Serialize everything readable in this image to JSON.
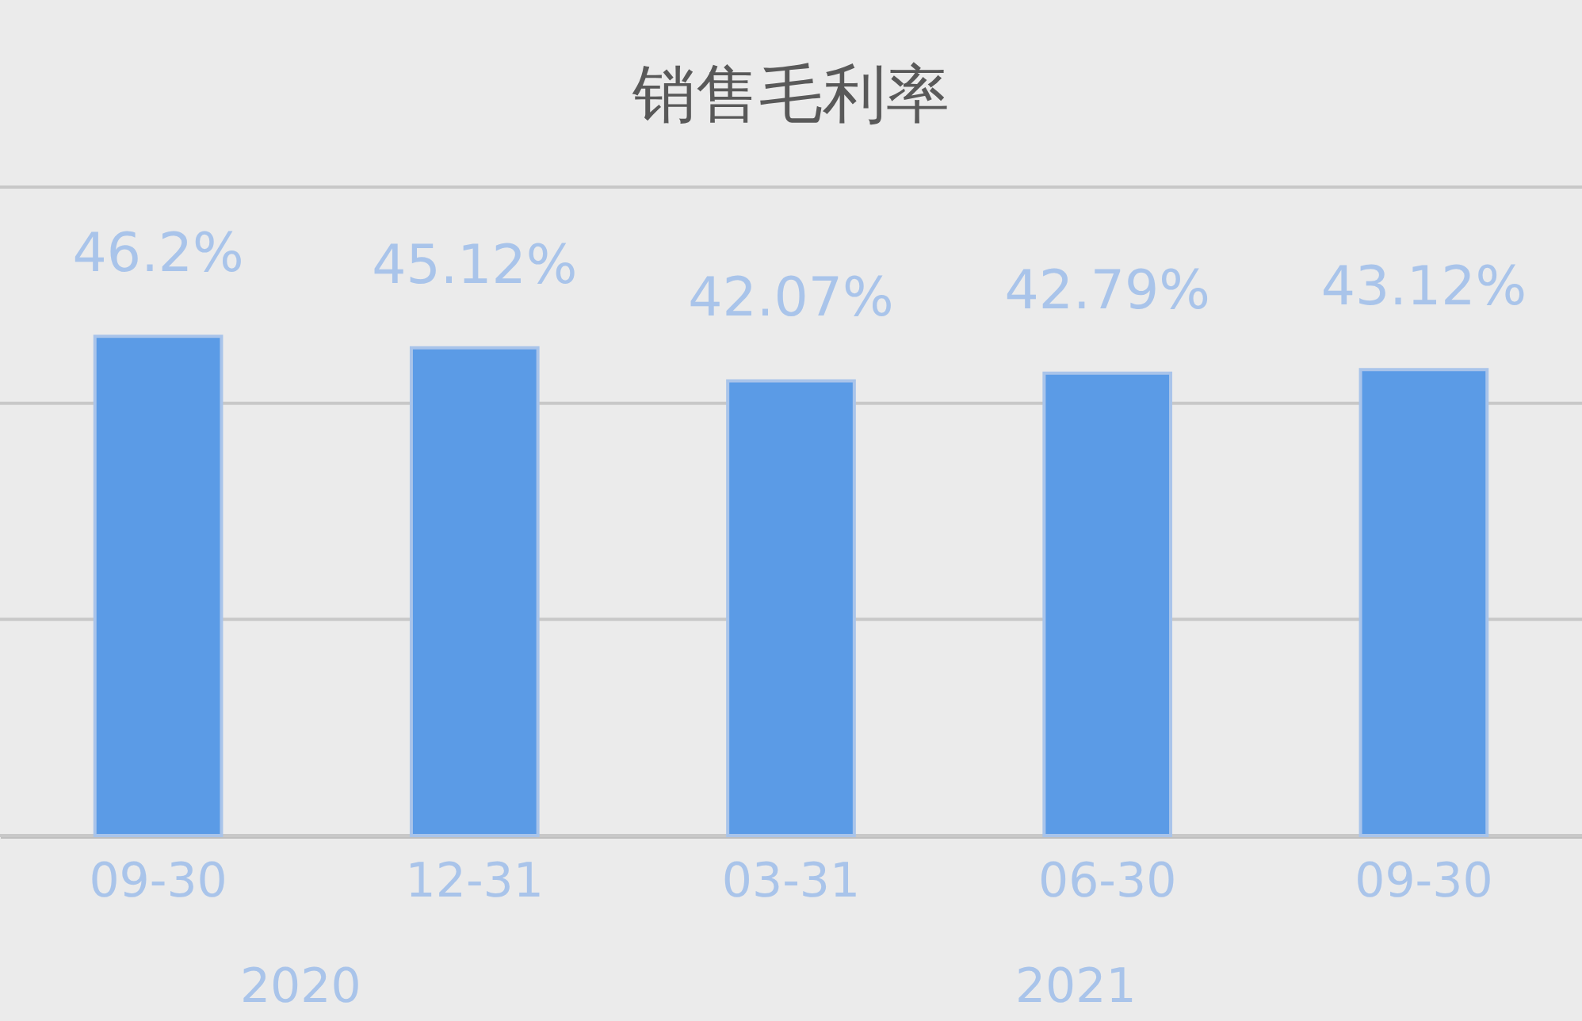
{
  "chart_data": {
    "type": "bar",
    "title": "销售毛利率",
    "categories": [
      "09-30",
      "12-31",
      "03-31",
      "06-30",
      "09-30"
    ],
    "values": [
      46.2,
      45.12,
      42.07,
      42.79,
      43.12
    ],
    "value_labels": [
      "46.2%",
      "45.12%",
      "42.07%",
      "42.79%",
      "43.12%"
    ],
    "color": "#5b9be6",
    "ylim": [
      0,
      60
    ],
    "yticks": [
      {
        "value": 0,
        "label": null
      },
      {
        "value": 20,
        "label": null
      },
      {
        "value": 40,
        "label": null
      },
      {
        "value": 60,
        "label": null
      }
    ],
    "grid": "y",
    "tick_labels": "x",
    "annotations": [
      "2020",
      "2021"
    ]
  }
}
